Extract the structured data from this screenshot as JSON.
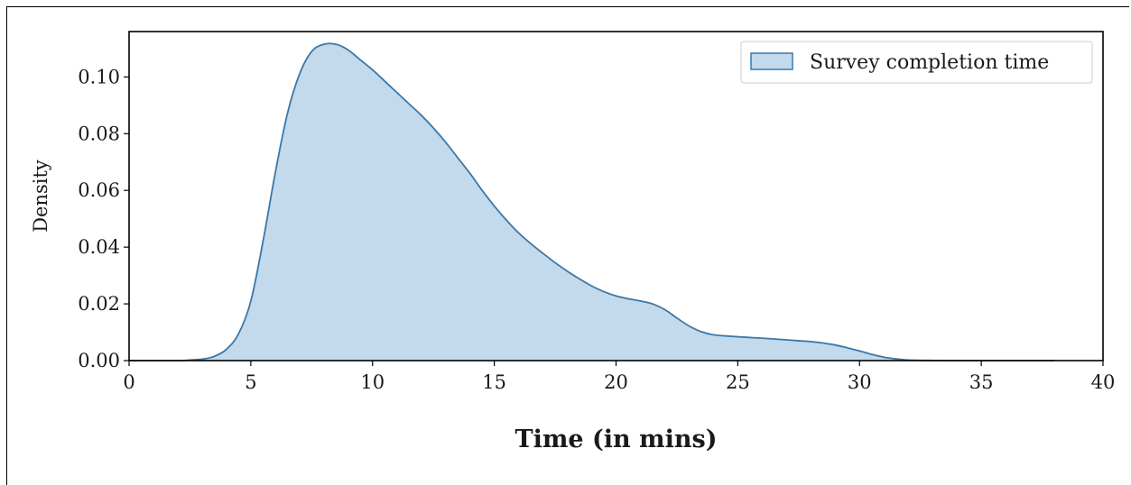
{
  "chart_data": {
    "type": "area",
    "title": "",
    "xlabel": "Time (in mins)",
    "ylabel": "Density",
    "xlim": [
      0,
      40
    ],
    "ylim": [
      0,
      0.116
    ],
    "xticks": [
      0,
      5,
      10,
      15,
      20,
      25,
      30,
      35,
      40
    ],
    "yticks": [
      0.0,
      0.02,
      0.04,
      0.06,
      0.08,
      0.1
    ],
    "ytick_labels": [
      "0.00",
      "0.02",
      "0.04",
      "0.06",
      "0.08",
      "0.10"
    ],
    "grid": false,
    "legend": {
      "position": "top-right"
    },
    "colors": {
      "fill": "#c3d9ec",
      "line": "#3b78a8"
    },
    "series": [
      {
        "name": "Survey completion time",
        "x": [
          0,
          2,
          2.5,
          3,
          3.5,
          4,
          4.5,
          5,
          5.5,
          6,
          6.5,
          7,
          7.5,
          8,
          8.5,
          9,
          9.5,
          10,
          10.5,
          11,
          11.5,
          12,
          12.5,
          13,
          13.5,
          14,
          14.5,
          15,
          15.5,
          16,
          16.5,
          17,
          17.5,
          18,
          18.5,
          19,
          19.5,
          20,
          20.5,
          21,
          21.5,
          22,
          22.5,
          23,
          23.5,
          24,
          25,
          26,
          27,
          28,
          28.5,
          29,
          29.5,
          30,
          30.5,
          31,
          31.5,
          32,
          33,
          34,
          35,
          36,
          38
        ],
        "y": [
          0,
          0,
          0.0002,
          0.0005,
          0.0015,
          0.004,
          0.0095,
          0.021,
          0.042,
          0.066,
          0.087,
          0.101,
          0.109,
          0.1115,
          0.1115,
          0.1095,
          0.106,
          0.1025,
          0.0985,
          0.0945,
          0.0905,
          0.0865,
          0.082,
          0.077,
          0.0715,
          0.066,
          0.06,
          0.0545,
          0.0495,
          0.045,
          0.0412,
          0.0378,
          0.0345,
          0.0315,
          0.0288,
          0.0263,
          0.0243,
          0.0228,
          0.0218,
          0.021,
          0.02,
          0.018,
          0.015,
          0.0122,
          0.0102,
          0.0091,
          0.0084,
          0.0079,
          0.0073,
          0.0067,
          0.0062,
          0.0055,
          0.0045,
          0.0034,
          0.0022,
          0.0012,
          0.0006,
          0.0002,
          5e-05,
          0,
          0,
          0,
          0
        ]
      }
    ]
  }
}
